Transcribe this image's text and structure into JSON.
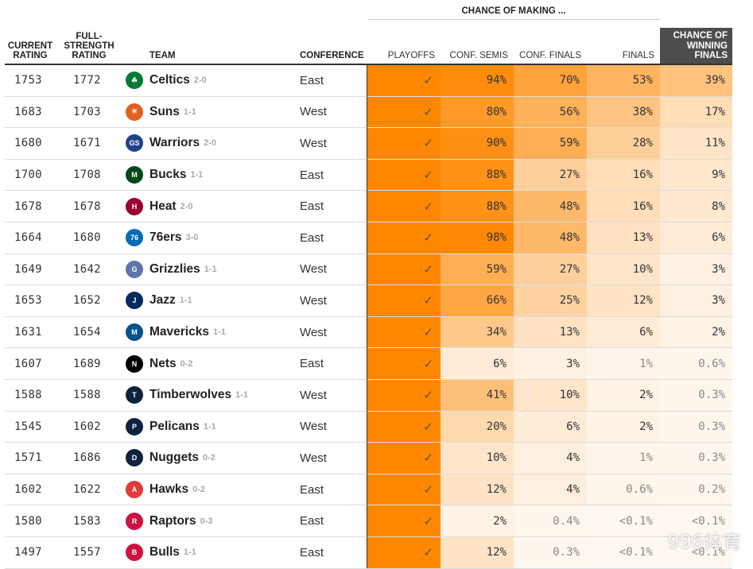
{
  "header": {
    "current_rating": "CURRENT RATING",
    "full_strength": "FULL-STRENGTH RATING",
    "team": "TEAM",
    "conference": "CONFERENCE",
    "group_title": "CHANCE OF MAKING ...",
    "playoffs": "PLAYOFFS",
    "conf_semis": "CONF. SEMIS",
    "conf_finals": "CONF. FINALS",
    "finals": "FINALS",
    "win_finals": "CHANCE OF WINNING FINALS"
  },
  "colors": {
    "playoffs": "#ff8700",
    "header_box": "#4d4d4d",
    "scale_low": "#fff8f0",
    "scale_high": "#ff8700"
  },
  "watermark": "996体育",
  "chart_data": {
    "type": "table",
    "columns": [
      "CURRENT RATING",
      "FULL-STRENGTH RATING",
      "TEAM",
      "CONFERENCE",
      "PLAYOFFS",
      "CONF. SEMIS",
      "CONF. FINALS",
      "FINALS",
      "CHANCE OF WINNING FINALS"
    ],
    "rows": [
      {
        "current": "1753",
        "full": "1772",
        "team": "Celtics",
        "record": "2-0",
        "conference": "East",
        "playoffs": "✓",
        "semis": "94%",
        "conf_finals": "70%",
        "finals": "53%",
        "win": "39%",
        "logo": "celtics-logo",
        "logo_color": "#007a33",
        "logo_text": "☘"
      },
      {
        "current": "1683",
        "full": "1703",
        "team": "Suns",
        "record": "1-1",
        "conference": "West",
        "playoffs": "✓",
        "semis": "80%",
        "conf_finals": "56%",
        "finals": "38%",
        "win": "17%",
        "logo": "suns-logo",
        "logo_color": "#e56020",
        "logo_text": "☀"
      },
      {
        "current": "1680",
        "full": "1671",
        "team": "Warriors",
        "record": "2-0",
        "conference": "West",
        "playoffs": "✓",
        "semis": "90%",
        "conf_finals": "59%",
        "finals": "28%",
        "win": "11%",
        "logo": "warriors-logo",
        "logo_color": "#1d428a",
        "logo_text": "GS"
      },
      {
        "current": "1700",
        "full": "1708",
        "team": "Bucks",
        "record": "1-1",
        "conference": "East",
        "playoffs": "✓",
        "semis": "88%",
        "conf_finals": "27%",
        "finals": "16%",
        "win": "9%",
        "logo": "bucks-logo",
        "logo_color": "#00471b",
        "logo_text": "M"
      },
      {
        "current": "1678",
        "full": "1678",
        "team": "Heat",
        "record": "2-0",
        "conference": "East",
        "playoffs": "✓",
        "semis": "88%",
        "conf_finals": "48%",
        "finals": "16%",
        "win": "8%",
        "logo": "heat-logo",
        "logo_color": "#98002e",
        "logo_text": "H"
      },
      {
        "current": "1664",
        "full": "1680",
        "team": "76ers",
        "record": "3-0",
        "conference": "East",
        "playoffs": "✓",
        "semis": "98%",
        "conf_finals": "48%",
        "finals": "13%",
        "win": "6%",
        "logo": "76ers-logo",
        "logo_color": "#006bb6",
        "logo_text": "76"
      },
      {
        "current": "1649",
        "full": "1642",
        "team": "Grizzlies",
        "record": "1-1",
        "conference": "West",
        "playoffs": "✓",
        "semis": "59%",
        "conf_finals": "27%",
        "finals": "10%",
        "win": "3%",
        "logo": "grizzlies-logo",
        "logo_color": "#5d76a9",
        "logo_text": "G"
      },
      {
        "current": "1653",
        "full": "1652",
        "team": "Jazz",
        "record": "1-1",
        "conference": "West",
        "playoffs": "✓",
        "semis": "66%",
        "conf_finals": "25%",
        "finals": "12%",
        "win": "3%",
        "logo": "jazz-logo",
        "logo_color": "#002b5c",
        "logo_text": "J"
      },
      {
        "current": "1631",
        "full": "1654",
        "team": "Mavericks",
        "record": "1-1",
        "conference": "West",
        "playoffs": "✓",
        "semis": "34%",
        "conf_finals": "13%",
        "finals": "6%",
        "win": "2%",
        "logo": "mavericks-logo",
        "logo_color": "#00538c",
        "logo_text": "M"
      },
      {
        "current": "1607",
        "full": "1689",
        "team": "Nets",
        "record": "0-2",
        "conference": "East",
        "playoffs": "✓",
        "semis": "6%",
        "conf_finals": "3%",
        "finals": "1%",
        "win": "0.6%",
        "logo": "nets-logo",
        "logo_color": "#000000",
        "logo_text": "N"
      },
      {
        "current": "1588",
        "full": "1588",
        "team": "Timberwolves",
        "record": "1-1",
        "conference": "West",
        "playoffs": "✓",
        "semis": "41%",
        "conf_finals": "10%",
        "finals": "2%",
        "win": "0.3%",
        "logo": "timberwolves-logo",
        "logo_color": "#0c2340",
        "logo_text": "T"
      },
      {
        "current": "1545",
        "full": "1602",
        "team": "Pelicans",
        "record": "1-1",
        "conference": "West",
        "playoffs": "✓",
        "semis": "20%",
        "conf_finals": "6%",
        "finals": "2%",
        "win": "0.3%",
        "logo": "pelicans-logo",
        "logo_color": "#0c2340",
        "logo_text": "P"
      },
      {
        "current": "1571",
        "full": "1686",
        "team": "Nuggets",
        "record": "0-2",
        "conference": "West",
        "playoffs": "✓",
        "semis": "10%",
        "conf_finals": "4%",
        "finals": "1%",
        "win": "0.3%",
        "logo": "nuggets-logo",
        "logo_color": "#0e2240",
        "logo_text": "D"
      },
      {
        "current": "1602",
        "full": "1622",
        "team": "Hawks",
        "record": "0-2",
        "conference": "East",
        "playoffs": "✓",
        "semis": "12%",
        "conf_finals": "4%",
        "finals": "0.6%",
        "win": "0.2%",
        "logo": "hawks-logo",
        "logo_color": "#e03a3e",
        "logo_text": "A"
      },
      {
        "current": "1580",
        "full": "1583",
        "team": "Raptors",
        "record": "0-3",
        "conference": "East",
        "playoffs": "✓",
        "semis": "2%",
        "conf_finals": "0.4%",
        "finals": "<0.1%",
        "win": "<0.1%",
        "logo": "raptors-logo",
        "logo_color": "#ce1141",
        "logo_text": "R"
      },
      {
        "current": "1497",
        "full": "1557",
        "team": "Bulls",
        "record": "1-1",
        "conference": "East",
        "playoffs": "✓",
        "semis": "12%",
        "conf_finals": "0.3%",
        "finals": "<0.1%",
        "win": "<0.1%",
        "logo": "bulls-logo",
        "logo_color": "#ce1141",
        "logo_text": "B"
      }
    ]
  }
}
